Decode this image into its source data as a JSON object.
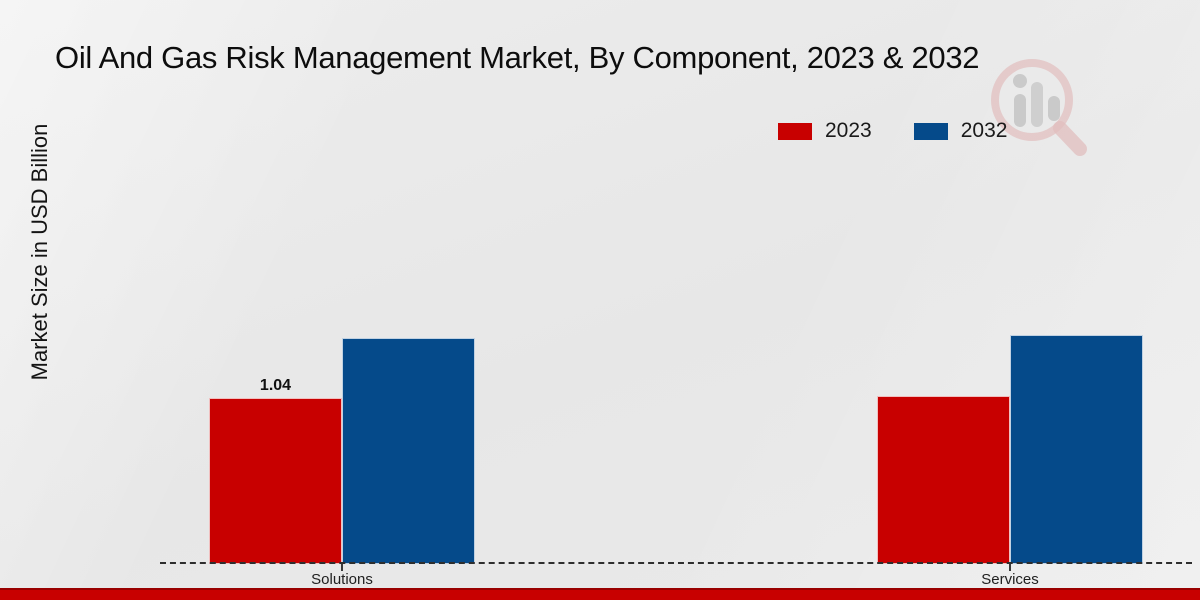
{
  "header": {
    "title": "Oil And Gas Risk Management Market, By Component, 2023 & 2032"
  },
  "watermark": {
    "icon": "magnifier-bar-chart-logo"
  },
  "footer": {
    "accent_bar_color": "#c80000",
    "accent_bar_top_color": "#990000"
  },
  "chart_data": {
    "type": "bar",
    "title": "Oil And Gas Risk Management Market, By Component, 2023 & 2032",
    "xlabel": "",
    "ylabel": "Market Size in USD Billion",
    "categories": [
      "Solutions",
      "Services"
    ],
    "series": [
      {
        "name": "2023",
        "color": "#c80000",
        "values": [
          1.04,
          1.05
        ]
      },
      {
        "name": "2032",
        "color": "#054a8a",
        "values": [
          1.41,
          1.43
        ]
      }
    ],
    "bar_value_labels": [
      {
        "category": "Solutions",
        "series": "2023",
        "text": "1.04"
      }
    ],
    "legend": {
      "position": "top-right",
      "entries": [
        "2023",
        "2032"
      ]
    },
    "ylim": [
      0,
      3.3
    ],
    "grid": false,
    "y_tick_labels_visible": false,
    "baseline_style": "dashed"
  }
}
